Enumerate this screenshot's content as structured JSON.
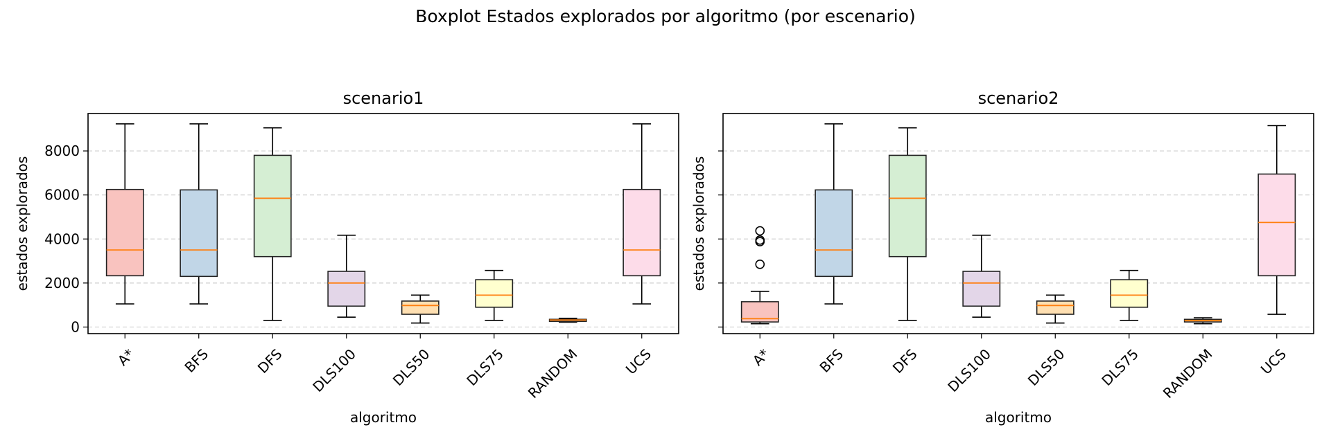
{
  "figure": {
    "suptitle": "Boxplot Estados explorados por algoritmo (por escenario)"
  },
  "chart_data": [
    {
      "type": "box",
      "title": "scenario1",
      "xlabel": "algoritmo",
      "ylabel": "estados explorados",
      "ylim": [
        -300,
        9700
      ],
      "yticks": [
        0,
        2000,
        4000,
        6000,
        8000
      ],
      "show_ytick_labels": true,
      "grid": "y-dashed",
      "categories": [
        "A*",
        "BFS",
        "DFS",
        "DLS100",
        "DLS50",
        "DLS75",
        "RANDOM",
        "UCS"
      ],
      "colors": [
        "#f9c3bf",
        "#c1d6e7",
        "#d5eed3",
        "#e3d6e8",
        "#fedfb1",
        "#ffffcf",
        "#f6ac6c",
        "#fddce9"
      ],
      "median_color": "#ff7f0e",
      "boxes": [
        {
          "whislo": 1050,
          "q1": 2330,
          "median": 3500,
          "q3": 6250,
          "whishi": 9230,
          "fliers": []
        },
        {
          "whislo": 1050,
          "q1": 2300,
          "median": 3500,
          "q3": 6230,
          "whishi": 9230,
          "fliers": []
        },
        {
          "whislo": 300,
          "q1": 3200,
          "median": 5850,
          "q3": 7800,
          "whishi": 9050,
          "fliers": []
        },
        {
          "whislo": 450,
          "q1": 950,
          "median": 2000,
          "q3": 2530,
          "whishi": 4170,
          "fliers": []
        },
        {
          "whislo": 180,
          "q1": 580,
          "median": 980,
          "q3": 1180,
          "whishi": 1450,
          "fliers": []
        },
        {
          "whislo": 300,
          "q1": 900,
          "median": 1450,
          "q3": 2150,
          "whishi": 2570,
          "fliers": []
        },
        {
          "whislo": 220,
          "q1": 260,
          "median": 320,
          "q3": 350,
          "whishi": 400,
          "fliers": []
        },
        {
          "whislo": 1050,
          "q1": 2330,
          "median": 3500,
          "q3": 6250,
          "whishi": 9230,
          "fliers": []
        }
      ]
    },
    {
      "type": "box",
      "title": "scenario2",
      "xlabel": "algoritmo",
      "ylabel": "estados explorados",
      "ylim": [
        -300,
        9700
      ],
      "yticks": [
        0,
        2000,
        4000,
        6000,
        8000
      ],
      "show_ytick_labels": false,
      "grid": "y-dashed",
      "categories": [
        "A*",
        "BFS",
        "DFS",
        "DLS100",
        "DLS50",
        "DLS75",
        "RANDOM",
        "UCS"
      ],
      "colors": [
        "#f9c3bf",
        "#c1d6e7",
        "#d5eed3",
        "#e3d6e8",
        "#fedfb1",
        "#ffffcf",
        "#f6ac6c",
        "#fddce9"
      ],
      "median_color": "#ff7f0e",
      "boxes": [
        {
          "whislo": 150,
          "q1": 230,
          "median": 380,
          "q3": 1150,
          "whishi": 1620,
          "fliers": [
            2850,
            3880,
            3950,
            4370
          ]
        },
        {
          "whislo": 1050,
          "q1": 2300,
          "median": 3500,
          "q3": 6230,
          "whishi": 9230,
          "fliers": []
        },
        {
          "whislo": 300,
          "q1": 3200,
          "median": 5850,
          "q3": 7800,
          "whishi": 9050,
          "fliers": []
        },
        {
          "whislo": 450,
          "q1": 950,
          "median": 2000,
          "q3": 2530,
          "whishi": 4170,
          "fliers": []
        },
        {
          "whislo": 180,
          "q1": 580,
          "median": 980,
          "q3": 1180,
          "whishi": 1450,
          "fliers": []
        },
        {
          "whislo": 300,
          "q1": 900,
          "median": 1450,
          "q3": 2150,
          "whishi": 2570,
          "fliers": []
        },
        {
          "whislo": 150,
          "q1": 230,
          "median": 300,
          "q3": 350,
          "whishi": 420,
          "fliers": []
        },
        {
          "whislo": 580,
          "q1": 2330,
          "median": 4750,
          "q3": 6950,
          "whishi": 9150,
          "fliers": []
        }
      ]
    }
  ]
}
